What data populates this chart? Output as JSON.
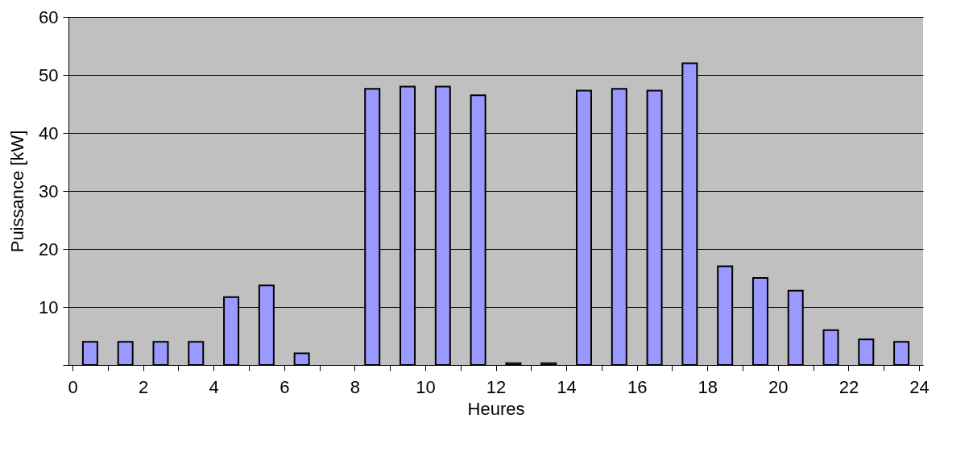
{
  "chart_data": {
    "type": "bar",
    "xlabel": "Heures",
    "ylabel": "Puissance [kW]",
    "x": [
      0.5,
      1.5,
      2.5,
      3.5,
      4.5,
      5.5,
      6.5,
      7.5,
      8.5,
      9.5,
      10.5,
      11.5,
      12.5,
      13.5,
      14.5,
      15.5,
      16.5,
      17.5,
      18.5,
      19.5,
      20.5,
      21.5,
      22.5,
      23.5
    ],
    "values": [
      4,
      4,
      4,
      4,
      11.7,
      13.7,
      2,
      null,
      47.6,
      48,
      48,
      46.5,
      0.3,
      0.3,
      47.3,
      47.6,
      47.3,
      52,
      17,
      15,
      12.8,
      6,
      4.4,
      4
    ],
    "color": "#9999ff",
    "xlim": [
      0,
      24
    ],
    "xticks": [
      0,
      {
        "value": 1,
        "label": null
      },
      2,
      {
        "value": 3,
        "label": null
      },
      4,
      {
        "value": 5,
        "label": null
      },
      6,
      {
        "value": 7,
        "label": null
      },
      8,
      {
        "value": 9,
        "label": null
      },
      10,
      {
        "value": 11,
        "label": null
      },
      12,
      {
        "value": 13,
        "label": null
      },
      14,
      {
        "value": 15,
        "label": null
      },
      16,
      {
        "value": 17,
        "label": null
      },
      18,
      {
        "value": 19,
        "label": null
      },
      20,
      {
        "value": 21,
        "label": null
      },
      22,
      {
        "value": 23,
        "label": null
      },
      24
    ],
    "ylim": [
      0,
      60
    ],
    "yticks": [
      {
        "value": 0,
        "label": null
      },
      10,
      20,
      30,
      40,
      50,
      60
    ],
    "grid": "y"
  }
}
